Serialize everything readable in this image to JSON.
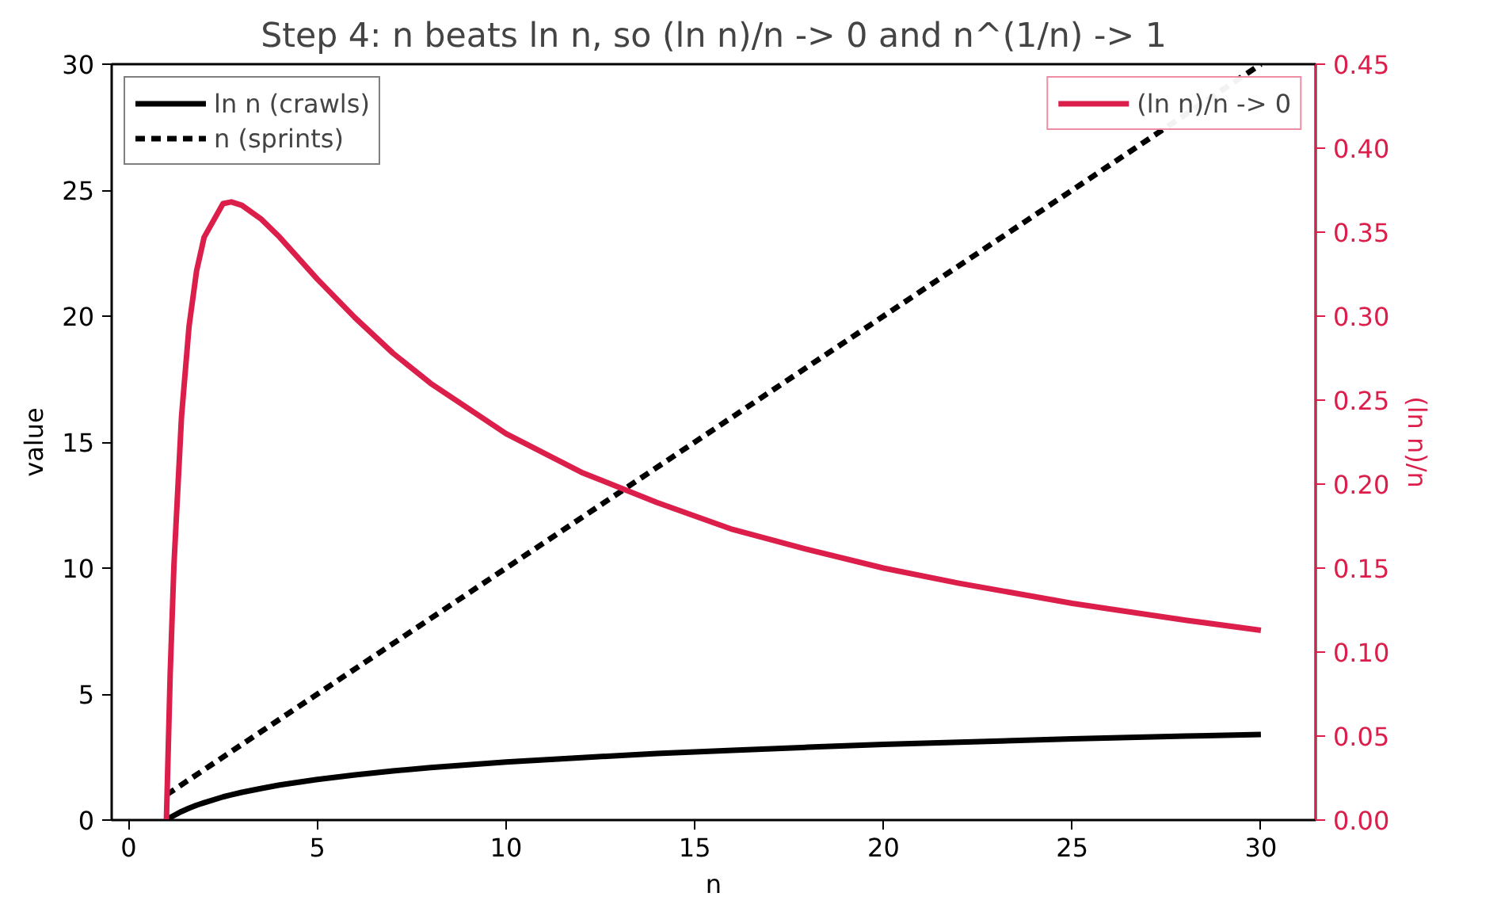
{
  "chart_data": {
    "type": "line",
    "title": "Step 4: n beats ln n, so (ln n)/n -> 0 and n^(1/n) -> 1",
    "xlabel": "n",
    "ylabel": "value",
    "y2label": "(ln n)/n",
    "xlim": [
      -0.45,
      31.45
    ],
    "xticks": [
      0,
      5,
      10,
      15,
      20,
      25,
      30
    ],
    "ylim": [
      0,
      30
    ],
    "yticks": [
      0,
      5,
      10,
      15,
      20,
      25,
      30
    ],
    "y2lim": [
      0,
      0.45
    ],
    "y2ticks": [
      {
        "value": 0,
        "label": "0.00"
      },
      {
        "value": 0.05,
        "label": "0.05"
      },
      {
        "value": 0.1,
        "label": "0.10"
      },
      {
        "value": 0.15,
        "label": "0.15"
      },
      {
        "value": 0.2,
        "label": "0.20"
      },
      {
        "value": 0.25,
        "label": "0.25"
      },
      {
        "value": 0.3,
        "label": "0.30"
      },
      {
        "value": 0.35,
        "label": "0.35"
      },
      {
        "value": 0.4,
        "label": "0.40"
      },
      {
        "value": 0.45,
        "label": "0.45"
      }
    ],
    "grid": false,
    "legend": "top left",
    "marker": "none",
    "series": [
      {
        "name": "ln n (crawls)",
        "color": "#000000",
        "line_style": "solid",
        "x": [
          1,
          1.1,
          1.2,
          1.4,
          1.6,
          1.8,
          2,
          2.5,
          2.72,
          3,
          3.5,
          4,
          5,
          6,
          7,
          8,
          10,
          12,
          14,
          16,
          18,
          20,
          22,
          25,
          28,
          30
        ],
        "values": [
          0,
          0.1,
          0.18,
          0.34,
          0.47,
          0.59,
          0.69,
          0.92,
          1.0,
          1.1,
          1.25,
          1.39,
          1.61,
          1.79,
          1.95,
          2.08,
          2.3,
          2.48,
          2.64,
          2.77,
          2.89,
          3.0,
          3.09,
          3.22,
          3.33,
          3.4
        ]
      },
      {
        "name": "n (sprints)",
        "color": "#000000",
        "line_style": "dashed",
        "x": [
          1,
          30
        ],
        "values": [
          1,
          30
        ]
      },
      {
        "name": "(ln n)/n -> 0",
        "color": "#dc1e4b",
        "line_style": "solid",
        "axis": "y2",
        "x": [
          1,
          1.1,
          1.2,
          1.4,
          1.6,
          1.8,
          2,
          2.5,
          2.72,
          3,
          3.5,
          4,
          5,
          6,
          7,
          8,
          10,
          12,
          14,
          16,
          18,
          20,
          22,
          25,
          28,
          30
        ],
        "values": [
          0,
          0.087,
          0.152,
          0.24,
          0.294,
          0.327,
          0.347,
          0.367,
          0.368,
          0.366,
          0.358,
          0.347,
          0.322,
          0.299,
          0.278,
          0.26,
          0.23,
          0.207,
          0.189,
          0.173,
          0.161,
          0.15,
          0.141,
          0.129,
          0.119,
          0.113
        ]
      }
    ]
  }
}
